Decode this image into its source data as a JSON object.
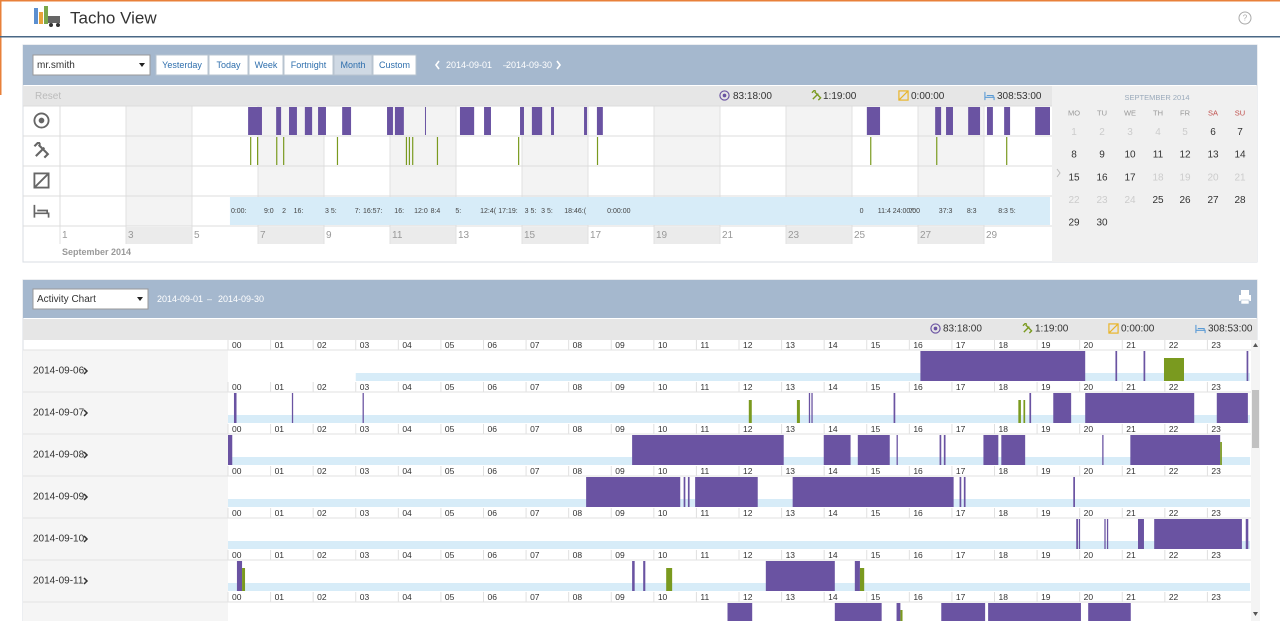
{
  "header": {
    "title": "Tacho View"
  },
  "toolbar": {
    "driver": "mr.smith",
    "periods": [
      "Yesterday",
      "Today",
      "Week",
      "Fortnight",
      "Month",
      "Custom"
    ],
    "active_period": "Month",
    "range_start": "2014-09-01",
    "range_sep": "–",
    "range_end": "2014-09-30"
  },
  "totals": {
    "reset": "Reset",
    "drive": "83:18:00",
    "work": "1:19:00",
    "available": "0:00:00",
    "rest": "308:53:00"
  },
  "month_chart": {
    "xlim": [
      1,
      31
    ],
    "xticks": [
      1,
      3,
      5,
      7,
      9,
      11,
      13,
      15,
      17,
      19,
      21,
      23,
      25,
      27,
      29
    ],
    "label": "September 2014",
    "drive": [
      [
        6.7,
        7.12
      ],
      [
        7.55,
        7.7
      ],
      [
        7.94,
        8.18
      ],
      [
        8.42,
        8.64
      ],
      [
        8.82,
        9.06
      ],
      [
        9.55,
        9.82
      ],
      [
        10.91,
        11.09
      ],
      [
        11.15,
        11.42
      ],
      [
        12.06,
        12.09
      ],
      [
        13.12,
        13.55
      ],
      [
        13.85,
        14.06
      ],
      [
        14.94,
        15.06
      ],
      [
        15.3,
        15.61
      ],
      [
        15.88,
        15.97
      ],
      [
        16.88,
        16.97
      ],
      [
        17.27,
        17.45
      ],
      [
        25.45,
        25.85
      ],
      [
        27.52,
        27.7
      ],
      [
        27.85,
        28.06
      ],
      [
        28.52,
        28.88
      ],
      [
        29.09,
        29.27
      ],
      [
        29.61,
        29.79
      ],
      [
        30.55,
        31.0
      ]
    ],
    "work": [
      [
        6.76,
        6.79
      ],
      [
        6.97,
        7.0
      ],
      [
        7.55,
        7.58
      ],
      [
        7.76,
        7.79
      ],
      [
        9.39,
        9.42
      ],
      [
        11.48,
        11.51
      ],
      [
        11.57,
        11.6
      ],
      [
        11.67,
        11.7
      ],
      [
        12.42,
        12.45
      ],
      [
        14.88,
        14.91
      ],
      [
        17.27,
        17.3
      ],
      [
        25.55,
        25.58
      ],
      [
        27.55,
        27.58
      ],
      [
        29.67,
        29.7
      ]
    ],
    "rest": [
      [
        6.15,
        31.0
      ]
    ],
    "rest_labels": [
      [
        6.15,
        "0:00:"
      ],
      [
        7.15,
        "9:0"
      ],
      [
        7.7,
        "2"
      ],
      [
        8.05,
        "16:"
      ],
      [
        9.0,
        "3 5:"
      ],
      [
        9.9,
        "7:"
      ],
      [
        10.15,
        "16:57:"
      ],
      [
        11.1,
        "16:"
      ],
      [
        11.7,
        "12:0"
      ],
      [
        12.2,
        "8:4"
      ],
      [
        12.95,
        "5:"
      ],
      [
        13.7,
        "12:4("
      ],
      [
        14.25,
        "17:19:"
      ],
      [
        15.05,
        "3 5:"
      ],
      [
        15.55,
        "3 5:"
      ],
      [
        16.25,
        "18:46:("
      ],
      [
        17.55,
        "0:00:00"
      ],
      [
        25.2,
        "0"
      ],
      [
        25.75,
        "11:4 24:00:00"
      ],
      [
        26.7,
        "7:"
      ],
      [
        27.6,
        "37:3"
      ],
      [
        28.45,
        "8:3"
      ],
      [
        29.4,
        "8:3 5:"
      ]
    ]
  },
  "calendar": {
    "title": "SEPTEMBER 2014",
    "weekdays": [
      "MO",
      "TU",
      "WE",
      "TH",
      "FR",
      "SA",
      "SU"
    ],
    "days": [
      1,
      2,
      3,
      4,
      5,
      6,
      7,
      8,
      9,
      10,
      11,
      12,
      13,
      14,
      15,
      16,
      17,
      18,
      19,
      20,
      21,
      22,
      23,
      24,
      25,
      26,
      27,
      28,
      29,
      30
    ],
    "muted": [
      1,
      2,
      3,
      4,
      5,
      18,
      19,
      20,
      21,
      22,
      23,
      24
    ]
  },
  "activity": {
    "view": "Activity Chart",
    "range_start": "2014-09-01",
    "range_sep": "–",
    "range_end": "2014-09-30",
    "xlim": [
      0,
      24
    ],
    "hours": [
      "00",
      "01",
      "02",
      "03",
      "04",
      "05",
      "06",
      "07",
      "08",
      "09",
      "10",
      "11",
      "12",
      "13",
      "14",
      "15",
      "16",
      "17",
      "18",
      "19",
      "20",
      "21",
      "22",
      "23"
    ],
    "colors": {
      "drive": "#6a53a2",
      "work": "#7a9a1f",
      "rest": "#d7ecf8"
    },
    "days": [
      {
        "date": "2014-09-06",
        "drive": [
          [
            16.26,
            20.13
          ],
          [
            20.84,
            20.88
          ],
          [
            21.5,
            21.54
          ],
          [
            23.92,
            23.96
          ]
        ],
        "work": [
          [
            21.98,
            22.45
          ]
        ],
        "rest": [
          [
            3.0,
            24.0
          ]
        ]
      },
      {
        "date": "2014-09-07",
        "drive": [
          [
            0.14,
            0.2
          ],
          [
            1.5,
            1.53
          ],
          [
            3.16,
            3.19
          ],
          [
            13.64,
            13.67
          ],
          [
            13.7,
            13.73
          ],
          [
            15.63,
            15.67
          ],
          [
            18.82,
            18.86
          ],
          [
            19.38,
            19.8
          ],
          [
            20.13,
            22.69
          ],
          [
            23.22,
            23.95
          ]
        ],
        "work": [
          [
            12.23,
            12.3
          ],
          [
            13.36,
            13.43
          ],
          [
            18.56,
            18.62
          ],
          [
            18.68,
            18.72
          ]
        ],
        "rest": [
          [
            0.0,
            24.0
          ]
        ]
      },
      {
        "date": "2014-09-08",
        "drive": [
          [
            0.0,
            0.1
          ],
          [
            9.49,
            13.05
          ],
          [
            13.99,
            14.62
          ],
          [
            14.79,
            15.54
          ],
          [
            15.7,
            15.73
          ],
          [
            16.71,
            16.75
          ],
          [
            16.81,
            16.85
          ],
          [
            17.74,
            18.09
          ],
          [
            18.16,
            18.72
          ],
          [
            20.53,
            20.56
          ],
          [
            21.19,
            23.3
          ]
        ],
        "work": [
          [
            23.3,
            23.34
          ]
        ],
        "rest": [
          [
            0.0,
            24.0
          ]
        ]
      },
      {
        "date": "2014-09-09",
        "drive": [
          [
            8.41,
            10.62
          ],
          [
            10.7,
            10.74
          ],
          [
            10.8,
            10.84
          ],
          [
            10.97,
            12.44
          ],
          [
            13.26,
            17.04
          ],
          [
            17.18,
            17.22
          ],
          [
            17.28,
            17.32
          ],
          [
            19.85,
            19.89
          ]
        ],
        "work": [],
        "rest": [
          [
            0.0,
            24.0
          ]
        ]
      },
      {
        "date": "2014-09-10",
        "drive": [
          [
            19.92,
            19.96
          ],
          [
            19.98,
            20.01
          ],
          [
            20.58,
            20.61
          ],
          [
            20.64,
            20.67
          ],
          [
            21.37,
            21.51
          ],
          [
            21.75,
            23.81
          ],
          [
            23.9,
            23.96
          ]
        ],
        "work": [],
        "rest": [
          [
            0.0,
            24.0
          ]
        ]
      },
      {
        "date": "2014-09-11",
        "drive": [
          [
            0.21,
            0.33
          ],
          [
            9.49,
            9.55
          ],
          [
            9.75,
            9.8
          ],
          [
            12.63,
            14.25
          ],
          [
            14.72,
            14.84
          ]
        ],
        "work": [
          [
            0.33,
            0.4
          ],
          [
            10.29,
            10.43
          ],
          [
            14.84,
            14.94
          ]
        ],
        "rest": [
          [
            0.0,
            24.0
          ]
        ]
      },
      {
        "date": null,
        "drive": [
          [
            11.73,
            12.31
          ],
          [
            14.25,
            15.35
          ],
          [
            15.7,
            15.79
          ],
          [
            16.75,
            17.78
          ],
          [
            17.85,
            20.03
          ],
          [
            20.2,
            21.2
          ]
        ],
        "work": [
          [
            15.79,
            15.84
          ]
        ],
        "rest": []
      }
    ]
  }
}
